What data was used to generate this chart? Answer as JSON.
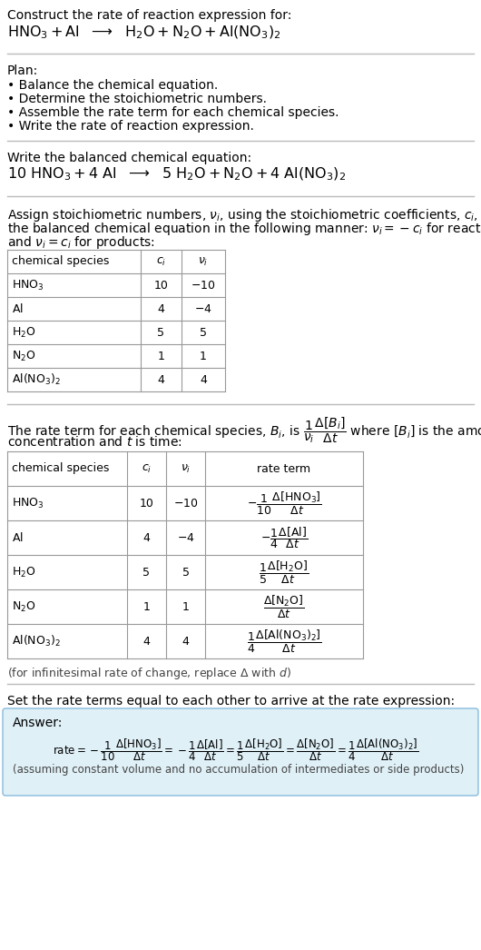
{
  "title_line1": "Construct the rate of reaction expression for:",
  "bg_color": "#ffffff",
  "text_color": "#000000",
  "gray_text": "#555555",
  "table_border_color": "#aaaaaa",
  "answer_box_color": "#dff0f7",
  "answer_box_border": "#88bbdd",
  "species1": [
    "HNO₃",
    "Al",
    "H₂O",
    "N₂O",
    "Al(NO₃)₂"
  ],
  "ci1": [
    "10",
    "4",
    "5",
    "1",
    "4"
  ],
  "ni1": [
    "−10",
    "−4",
    "5",
    "1",
    "4"
  ],
  "ci2": [
    "10",
    "4",
    "5",
    "1",
    "4"
  ],
  "ni2": [
    "−10",
    "−4",
    "5",
    "1",
    "4"
  ]
}
